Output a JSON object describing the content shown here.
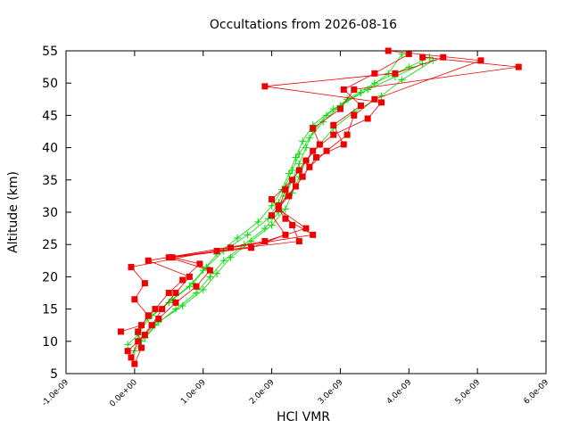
{
  "chart_data": {
    "type": "line",
    "title": "Occultations from 2026-08-16",
    "xlabel": "HCl VMR",
    "ylabel": "Altitude (km)",
    "xlim": [
      -1e-09,
      6e-09
    ],
    "ylim": [
      5,
      55
    ],
    "x_ticks": [
      -1e-09,
      0.0,
      1e-09,
      2e-09,
      3e-09,
      4e-09,
      5e-09,
      6e-09
    ],
    "x_tick_labels": [
      "-1.0e-09",
      "0.0e+00",
      "1.0e-09",
      "2.0e-09",
      "3.0e-09",
      "4.0e-09",
      "5.0e-09",
      "6.0e-09"
    ],
    "y_ticks": [
      5,
      10,
      15,
      20,
      25,
      30,
      35,
      40,
      45,
      50,
      55
    ],
    "y_tick_labels": [
      "5",
      "10",
      "15",
      "20",
      "25",
      "30",
      "35",
      "40",
      "45",
      "50",
      "55"
    ],
    "grid": false,
    "legend": "none",
    "series": [
      {
        "color": "#00dd00",
        "marker": "plus",
        "profiles": [
          [
            [
              0.0,
              8.5
            ],
            [
              1e-10,
              10.0
            ],
            [
              3e-10,
              12.5
            ],
            [
              6e-10,
              15.0
            ],
            [
              9e-10,
              17.5
            ],
            [
              1.1e-09,
              20.0
            ],
            [
              1.3e-09,
              22.5
            ],
            [
              1.6e-09,
              25.0
            ],
            [
              1.9e-09,
              27.5
            ],
            [
              2.1e-09,
              30.0
            ],
            [
              2.2e-09,
              32.5
            ],
            [
              2.3e-09,
              35.0
            ],
            [
              2.4e-09,
              37.5
            ],
            [
              2.5e-09,
              40.0
            ],
            [
              2.6e-09,
              42.5
            ],
            [
              2.8e-09,
              45.0
            ],
            [
              3.1e-09,
              47.5
            ],
            [
              3.5e-09,
              50.0
            ],
            [
              4e-09,
              52.5
            ],
            [
              4.3e-09,
              54.0
            ]
          ],
          [
            [
              -1e-10,
              9.5
            ],
            [
              5e-11,
              11.0
            ],
            [
              2e-10,
              13.5
            ],
            [
              5e-10,
              16.0
            ],
            [
              8e-10,
              18.5
            ],
            [
              1e-09,
              21.0
            ],
            [
              1.2e-09,
              23.5
            ],
            [
              1.5e-09,
              26.0
            ],
            [
              1.8e-09,
              28.5
            ],
            [
              2e-09,
              31.0
            ],
            [
              2.15e-09,
              33.5
            ],
            [
              2.25e-09,
              36.0
            ],
            [
              2.35e-09,
              38.5
            ],
            [
              2.45e-09,
              41.0
            ],
            [
              2.6e-09,
              43.5
            ],
            [
              2.9e-09,
              46.0
            ],
            [
              3.3e-09,
              48.5
            ],
            [
              3.8e-09,
              51.0
            ],
            [
              4.2e-09,
              53.0
            ]
          ],
          [
            [
              1.5e-10,
              10.5
            ],
            [
              3.5e-10,
              13.0
            ],
            [
              7e-10,
              15.5
            ],
            [
              1e-09,
              18.0
            ],
            [
              1.2e-09,
              20.5
            ],
            [
              1.4e-09,
              23.0
            ],
            [
              1.7e-09,
              25.5
            ],
            [
              2e-09,
              28.0
            ],
            [
              2.2e-09,
              30.5
            ],
            [
              2.3e-09,
              33.0
            ],
            [
              2.4e-09,
              35.5
            ],
            [
              2.5e-09,
              38.0
            ],
            [
              2.7e-09,
              40.5
            ],
            [
              2.9e-09,
              43.0
            ],
            [
              3.2e-09,
              45.5
            ],
            [
              3.6e-09,
              48.0
            ],
            [
              3.9e-09,
              50.5
            ],
            [
              4.35e-09,
              53.5
            ]
          ],
          [
            [
              5e-11,
              11.5
            ],
            [
              2.5e-10,
              14.0
            ],
            [
              5.5e-10,
              16.5
            ],
            [
              8.5e-10,
              19.0
            ],
            [
              1.05e-09,
              21.5
            ],
            [
              1.3e-09,
              24.0
            ],
            [
              1.65e-09,
              26.5
            ],
            [
              1.95e-09,
              29.0
            ],
            [
              2.1e-09,
              31.5
            ],
            [
              2.2e-09,
              34.0
            ],
            [
              2.3e-09,
              36.5
            ],
            [
              2.4e-09,
              39.0
            ],
            [
              2.55e-09,
              41.5
            ],
            [
              2.75e-09,
              44.0
            ],
            [
              3e-09,
              46.5
            ],
            [
              3.4e-09,
              49.0
            ],
            [
              3.7e-09,
              51.5
            ],
            [
              3.9e-09,
              54.5
            ]
          ]
        ]
      },
      {
        "color": "#ee0000",
        "marker": "square",
        "profiles": [
          [
            [
              0.0,
              6.5
            ],
            [
              1e-10,
              9.0
            ],
            [
              5e-11,
              11.5
            ],
            [
              2e-10,
              14.0
            ],
            [
              0.0,
              16.5
            ],
            [
              1.5e-10,
              19.0
            ],
            [
              -5e-11,
              21.5
            ],
            [
              1.4e-09,
              24.5
            ],
            [
              2.6e-09,
              26.5
            ],
            [
              2.2e-09,
              29.0
            ],
            [
              2e-09,
              32.0
            ],
            [
              2.3e-09,
              35.0
            ],
            [
              2.5e-09,
              38.0
            ],
            [
              2.7e-09,
              40.5
            ],
            [
              2.6e-09,
              43.0
            ],
            [
              3e-09,
              46.0
            ],
            [
              3.2e-09,
              49.0
            ],
            [
              5.6e-09,
              52.5
            ],
            [
              4.2e-09,
              54.0
            ]
          ],
          [
            [
              -5e-11,
              7.5
            ],
            [
              5e-11,
              10.0
            ],
            [
              2.5e-10,
              12.5
            ],
            [
              4e-10,
              15.0
            ],
            [
              6e-10,
              17.5
            ],
            [
              8e-10,
              20.0
            ],
            [
              2e-10,
              22.5
            ],
            [
              1.9e-09,
              25.5
            ],
            [
              2.5e-09,
              27.5
            ],
            [
              2.1e-09,
              30.5
            ],
            [
              2.2e-09,
              33.5
            ],
            [
              2.4e-09,
              36.5
            ],
            [
              2.6e-09,
              39.5
            ],
            [
              2.9e-09,
              42.0
            ],
            [
              3.4e-09,
              44.5
            ],
            [
              3.6e-09,
              47.0
            ],
            [
              1.9e-09,
              49.5
            ],
            [
              3.8e-09,
              51.5
            ],
            [
              4.5e-09,
              54.0
            ]
          ],
          [
            [
              -1e-10,
              8.5
            ],
            [
              1.5e-10,
              11.0
            ],
            [
              3.5e-10,
              13.5
            ],
            [
              6e-10,
              16.0
            ],
            [
              9e-10,
              18.5
            ],
            [
              1.1e-09,
              21.0
            ],
            [
              5e-10,
              23.0
            ],
            [
              1.2e-09,
              24.0
            ],
            [
              2.4e-09,
              25.5
            ],
            [
              2.3e-09,
              28.0
            ],
            [
              2.1e-09,
              31.0
            ],
            [
              2.35e-09,
              34.0
            ],
            [
              2.55e-09,
              37.0
            ],
            [
              2.8e-09,
              39.5
            ],
            [
              3.1e-09,
              42.0
            ],
            [
              3.2e-09,
              45.0
            ],
            [
              3.5e-09,
              47.5
            ],
            [
              5.05e-09,
              53.5
            ],
            [
              3.7e-09,
              55.0
            ]
          ],
          [
            [
              -2e-10,
              11.5
            ],
            [
              1e-10,
              12.5
            ],
            [
              3e-10,
              15.0
            ],
            [
              5e-10,
              17.5
            ],
            [
              7e-10,
              19.5
            ],
            [
              9.5e-10,
              22.0
            ],
            [
              5.5e-10,
              23.0
            ],
            [
              1.7e-09,
              24.5
            ],
            [
              2.2e-09,
              26.5
            ],
            [
              2e-09,
              29.5
            ],
            [
              2.25e-09,
              32.5
            ],
            [
              2.45e-09,
              35.5
            ],
            [
              2.65e-09,
              38.5
            ],
            [
              3.05e-09,
              40.5
            ],
            [
              2.9e-09,
              43.5
            ],
            [
              3.3e-09,
              46.5
            ],
            [
              3.05e-09,
              49.0
            ],
            [
              3.5e-09,
              51.5
            ],
            [
              4e-09,
              54.5
            ]
          ]
        ]
      }
    ]
  }
}
